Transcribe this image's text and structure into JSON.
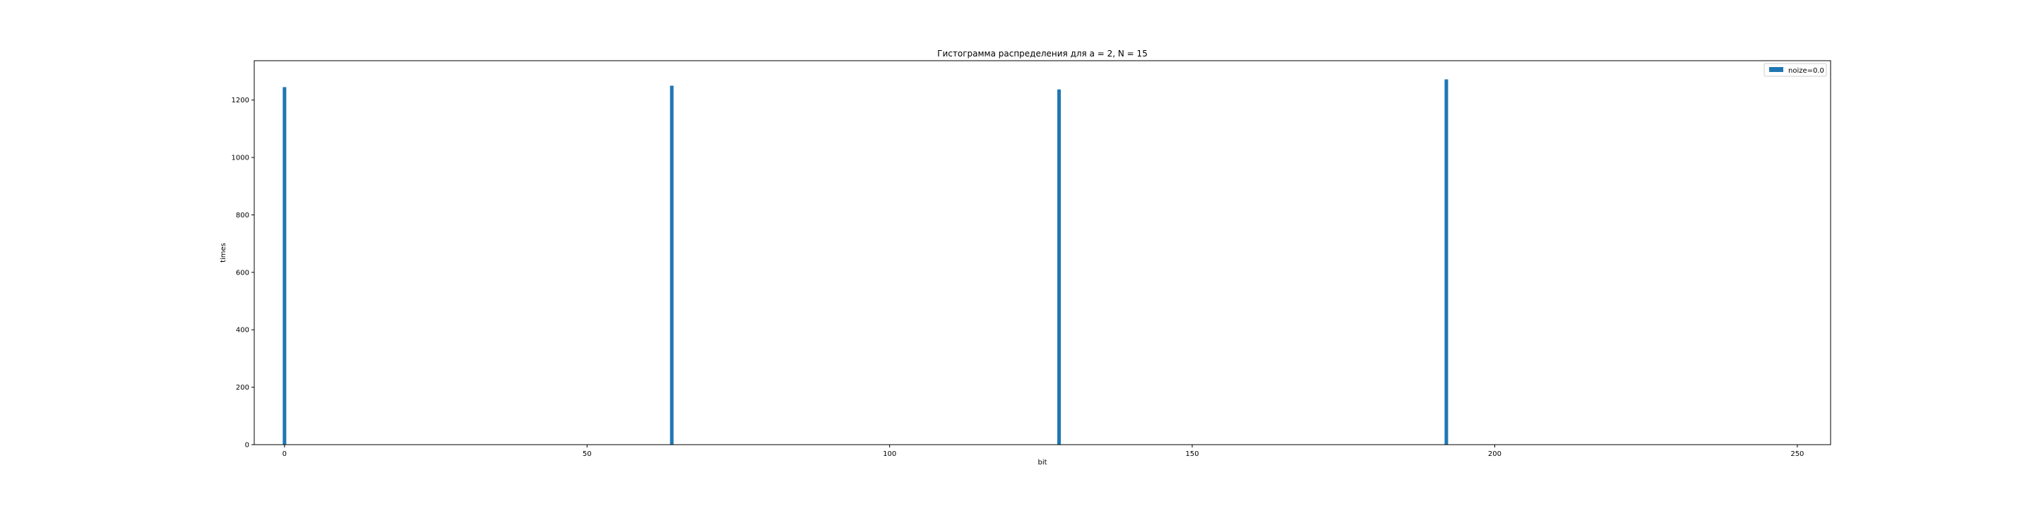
{
  "chart_data": {
    "type": "bar",
    "title": "Гистограмма распределения для a = 2, N = 15",
    "xlabel": "bit",
    "ylabel": "times",
    "xlim": [
      -5,
      255.5
    ],
    "ylim": [
      0,
      1337
    ],
    "xticks": [
      0,
      50,
      100,
      150,
      200,
      250
    ],
    "yticks": [
      0,
      200,
      400,
      600,
      800,
      1000,
      1200
    ],
    "grid": false,
    "legend": {
      "position": "top-right"
    },
    "series": [
      {
        "name": "noize=0.0",
        "color": "#1f77b4",
        "points": [
          {
            "x": 0,
            "y": 1245
          },
          {
            "x": 64,
            "y": 1250
          },
          {
            "x": 128,
            "y": 1237
          },
          {
            "x": 192,
            "y": 1272
          }
        ]
      }
    ]
  }
}
